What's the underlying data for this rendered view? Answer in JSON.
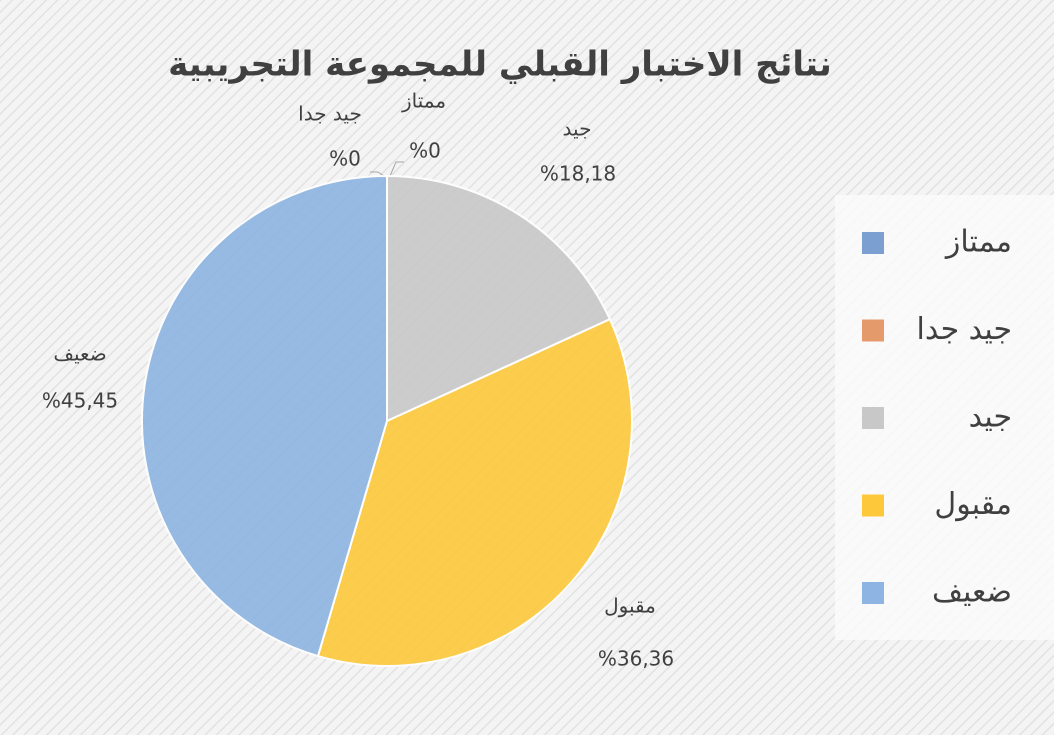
{
  "chart_data": {
    "type": "pie",
    "title": "نتائج الاختبار القبلي للمجموعة التجريبية",
    "categories": [
      "ممتاز",
      "جيد جدا",
      "جيد",
      "مقبول",
      "ضعيف"
    ],
    "values": [
      0,
      0,
      18.18,
      36.36,
      45.45
    ],
    "value_labels": [
      "%0",
      "%0",
      "%18,18",
      "%36,36",
      "%45,45"
    ],
    "colors": [
      "#7a9fd0",
      "#e59a6c",
      "#c8c8c8",
      "#fdc83a",
      "#8db4e2"
    ],
    "legend": "right"
  }
}
